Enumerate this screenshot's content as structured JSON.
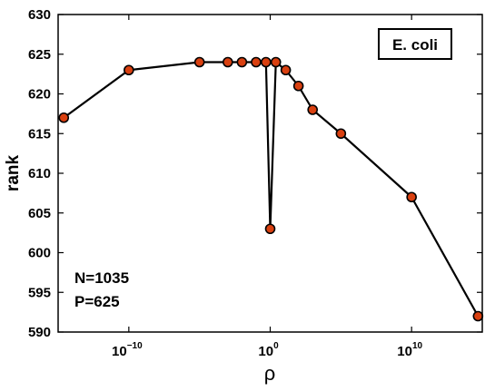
{
  "chart_data": {
    "type": "line",
    "xlabel": "ρ",
    "ylabel": "rank",
    "xscale": "log",
    "xlim_log10": [
      -15,
      15
    ],
    "ylim": [
      590,
      630
    ],
    "x_ticks": [
      {
        "log10": -10,
        "base": "10",
        "exp": "−10"
      },
      {
        "log10": 0,
        "base": "10",
        "exp": "0"
      },
      {
        "log10": 10,
        "base": "10",
        "exp": "10"
      }
    ],
    "y_ticks": [
      590,
      595,
      600,
      605,
      610,
      615,
      620,
      625,
      630
    ],
    "grid": false,
    "legend": {
      "text": "E. coli",
      "placement": "top-right"
    },
    "annotations": [
      "N=1035",
      "P=625"
    ],
    "series": [
      {
        "color": "#d94010",
        "points": [
          {
            "log10x": -14.6,
            "y": 617
          },
          {
            "log10x": -10,
            "y": 623
          },
          {
            "log10x": -5,
            "y": 624
          },
          {
            "log10x": -3,
            "y": 624
          },
          {
            "log10x": -2,
            "y": 624
          },
          {
            "log10x": -1,
            "y": 624
          },
          {
            "log10x": -0.3,
            "y": 624
          },
          {
            "log10x": 0,
            "y": 603
          },
          {
            "log10x": 0.4,
            "y": 624
          },
          {
            "log10x": 1.1,
            "y": 623
          },
          {
            "log10x": 2,
            "y": 621
          },
          {
            "log10x": 3,
            "y": 618
          },
          {
            "log10x": 5,
            "y": 615
          },
          {
            "log10x": 10,
            "y": 607
          },
          {
            "log10x": 14.7,
            "y": 592
          }
        ]
      }
    ]
  }
}
